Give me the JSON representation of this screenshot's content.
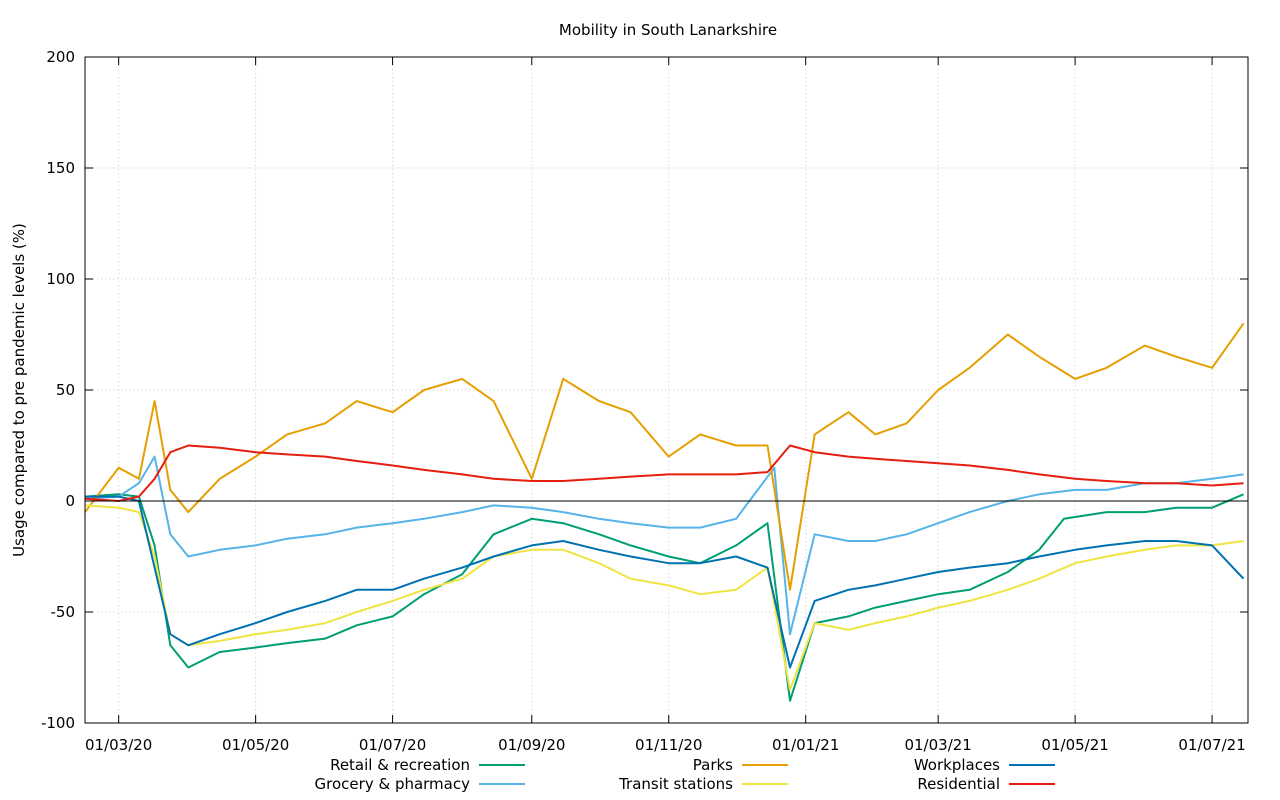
{
  "chart_data": {
    "type": "line",
    "title": "Mobility in South Lanarkshire",
    "xlabel": "",
    "ylabel": "Usage compared to pre pandemic levels (%)",
    "ylim": [
      -100,
      200
    ],
    "yticks": [
      -100,
      -50,
      0,
      50,
      100,
      150,
      200
    ],
    "x_start": "2020-02-15",
    "x_end": "2021-07-17",
    "xticks": [
      {
        "date": "2020-03-01",
        "label": "01/03/20"
      },
      {
        "date": "2020-05-01",
        "label": "01/05/20"
      },
      {
        "date": "2020-07-01",
        "label": "01/07/20"
      },
      {
        "date": "2020-09-01",
        "label": "01/09/20"
      },
      {
        "date": "2020-11-01",
        "label": "01/11/20"
      },
      {
        "date": "2021-01-01",
        "label": "01/01/21"
      },
      {
        "date": "2021-03-01",
        "label": "01/03/21"
      },
      {
        "date": "2021-05-01",
        "label": "01/05/21"
      },
      {
        "date": "2021-07-01",
        "label": "01/07/21"
      }
    ],
    "grid": true,
    "legend_position": "bottom",
    "series": [
      {
        "name": "Retail & recreation",
        "color": "#009e73",
        "points": [
          [
            "2020-02-15",
            2
          ],
          [
            "2020-03-01",
            3
          ],
          [
            "2020-03-10",
            2
          ],
          [
            "2020-03-17",
            -20
          ],
          [
            "2020-03-24",
            -65
          ],
          [
            "2020-04-01",
            -75
          ],
          [
            "2020-04-15",
            -68
          ],
          [
            "2020-05-01",
            -66
          ],
          [
            "2020-05-15",
            -64
          ],
          [
            "2020-06-01",
            -62
          ],
          [
            "2020-06-15",
            -56
          ],
          [
            "2020-07-01",
            -52
          ],
          [
            "2020-07-15",
            -42
          ],
          [
            "2020-08-01",
            -33
          ],
          [
            "2020-08-15",
            -15
          ],
          [
            "2020-09-01",
            -8
          ],
          [
            "2020-09-15",
            -10
          ],
          [
            "2020-10-01",
            -15
          ],
          [
            "2020-10-15",
            -20
          ],
          [
            "2020-11-01",
            -25
          ],
          [
            "2020-11-15",
            -28
          ],
          [
            "2020-12-01",
            -20
          ],
          [
            "2020-12-15",
            -10
          ],
          [
            "2020-12-25",
            -90
          ],
          [
            "2021-01-05",
            -55
          ],
          [
            "2021-01-20",
            -52
          ],
          [
            "2021-02-01",
            -48
          ],
          [
            "2021-02-15",
            -45
          ],
          [
            "2021-03-01",
            -42
          ],
          [
            "2021-03-15",
            -40
          ],
          [
            "2021-04-01",
            -32
          ],
          [
            "2021-04-15",
            -22
          ],
          [
            "2021-04-26",
            -8
          ],
          [
            "2021-05-15",
            -5
          ],
          [
            "2021-06-01",
            -5
          ],
          [
            "2021-06-15",
            -3
          ],
          [
            "2021-07-01",
            -3
          ],
          [
            "2021-07-15",
            3
          ]
        ]
      },
      {
        "name": "Grocery & pharmacy",
        "color": "#56b4e9",
        "points": [
          [
            "2020-02-15",
            1
          ],
          [
            "2020-03-01",
            2
          ],
          [
            "2020-03-10",
            8
          ],
          [
            "2020-03-17",
            20
          ],
          [
            "2020-03-24",
            -15
          ],
          [
            "2020-04-01",
            -25
          ],
          [
            "2020-04-15",
            -22
          ],
          [
            "2020-05-01",
            -20
          ],
          [
            "2020-05-15",
            -17
          ],
          [
            "2020-06-01",
            -15
          ],
          [
            "2020-06-15",
            -12
          ],
          [
            "2020-07-01",
            -10
          ],
          [
            "2020-07-15",
            -8
          ],
          [
            "2020-08-01",
            -5
          ],
          [
            "2020-08-15",
            -2
          ],
          [
            "2020-09-01",
            -3
          ],
          [
            "2020-09-15",
            -5
          ],
          [
            "2020-10-01",
            -8
          ],
          [
            "2020-10-15",
            -10
          ],
          [
            "2020-11-01",
            -12
          ],
          [
            "2020-11-15",
            -12
          ],
          [
            "2020-12-01",
            -8
          ],
          [
            "2020-12-18",
            15
          ],
          [
            "2020-12-25",
            -60
          ],
          [
            "2021-01-05",
            -15
          ],
          [
            "2021-01-20",
            -18
          ],
          [
            "2021-02-01",
            -18
          ],
          [
            "2021-02-15",
            -15
          ],
          [
            "2021-03-01",
            -10
          ],
          [
            "2021-03-15",
            -5
          ],
          [
            "2021-04-01",
            0
          ],
          [
            "2021-04-15",
            3
          ],
          [
            "2021-05-01",
            5
          ],
          [
            "2021-05-15",
            5
          ],
          [
            "2021-06-01",
            8
          ],
          [
            "2021-06-15",
            8
          ],
          [
            "2021-07-01",
            10
          ],
          [
            "2021-07-15",
            12
          ]
        ]
      },
      {
        "name": "Parks",
        "color": "#e69f00",
        "points": [
          [
            "2020-02-15",
            -5
          ],
          [
            "2020-03-01",
            15
          ],
          [
            "2020-03-10",
            10
          ],
          [
            "2020-03-17",
            45
          ],
          [
            "2020-03-24",
            5
          ],
          [
            "2020-04-01",
            -5
          ],
          [
            "2020-04-15",
            10
          ],
          [
            "2020-05-01",
            20
          ],
          [
            "2020-05-15",
            30
          ],
          [
            "2020-06-01",
            35
          ],
          [
            "2020-06-15",
            45
          ],
          [
            "2020-07-01",
            40
          ],
          [
            "2020-07-15",
            50
          ],
          [
            "2020-08-01",
            55
          ],
          [
            "2020-08-15",
            45
          ],
          [
            "2020-09-01",
            10
          ],
          [
            "2020-09-15",
            55
          ],
          [
            "2020-10-01",
            45
          ],
          [
            "2020-10-15",
            40
          ],
          [
            "2020-11-01",
            20
          ],
          [
            "2020-11-15",
            30
          ],
          [
            "2020-12-01",
            25
          ],
          [
            "2020-12-15",
            25
          ],
          [
            "2020-12-25",
            -40
          ],
          [
            "2021-01-05",
            30
          ],
          [
            "2021-01-20",
            40
          ],
          [
            "2021-02-01",
            30
          ],
          [
            "2021-02-15",
            35
          ],
          [
            "2021-03-01",
            50
          ],
          [
            "2021-03-15",
            60
          ],
          [
            "2021-04-01",
            75
          ],
          [
            "2021-04-15",
            65
          ],
          [
            "2021-05-01",
            55
          ],
          [
            "2021-05-15",
            60
          ],
          [
            "2021-06-01",
            70
          ],
          [
            "2021-06-15",
            65
          ],
          [
            "2021-07-01",
            60
          ],
          [
            "2021-07-15",
            80
          ]
        ]
      },
      {
        "name": "Transit stations",
        "color": "#f0e442",
        "points": [
          [
            "2020-02-15",
            -2
          ],
          [
            "2020-03-01",
            -3
          ],
          [
            "2020-03-10",
            -5
          ],
          [
            "2020-03-17",
            -25
          ],
          [
            "2020-03-24",
            -60
          ],
          [
            "2020-04-01",
            -65
          ],
          [
            "2020-04-15",
            -63
          ],
          [
            "2020-05-01",
            -60
          ],
          [
            "2020-05-15",
            -58
          ],
          [
            "2020-06-01",
            -55
          ],
          [
            "2020-06-15",
            -50
          ],
          [
            "2020-07-01",
            -45
          ],
          [
            "2020-07-15",
            -40
          ],
          [
            "2020-08-01",
            -35
          ],
          [
            "2020-08-15",
            -25
          ],
          [
            "2020-09-01",
            -22
          ],
          [
            "2020-09-15",
            -22
          ],
          [
            "2020-10-01",
            -28
          ],
          [
            "2020-10-15",
            -35
          ],
          [
            "2020-11-01",
            -38
          ],
          [
            "2020-11-15",
            -42
          ],
          [
            "2020-12-01",
            -40
          ],
          [
            "2020-12-15",
            -30
          ],
          [
            "2020-12-25",
            -85
          ],
          [
            "2021-01-05",
            -55
          ],
          [
            "2021-01-20",
            -58
          ],
          [
            "2021-02-01",
            -55
          ],
          [
            "2021-02-15",
            -52
          ],
          [
            "2021-03-01",
            -48
          ],
          [
            "2021-03-15",
            -45
          ],
          [
            "2021-04-01",
            -40
          ],
          [
            "2021-04-15",
            -35
          ],
          [
            "2021-05-01",
            -28
          ],
          [
            "2021-05-15",
            -25
          ],
          [
            "2021-06-01",
            -22
          ],
          [
            "2021-06-15",
            -20
          ],
          [
            "2021-07-01",
            -20
          ],
          [
            "2021-07-15",
            -18
          ]
        ]
      },
      {
        "name": "Workplaces",
        "color": "#0072b2",
        "points": [
          [
            "2020-02-15",
            2
          ],
          [
            "2020-03-01",
            2
          ],
          [
            "2020-03-10",
            0
          ],
          [
            "2020-03-17",
            -30
          ],
          [
            "2020-03-24",
            -60
          ],
          [
            "2020-04-01",
            -65
          ],
          [
            "2020-04-15",
            -60
          ],
          [
            "2020-05-01",
            -55
          ],
          [
            "2020-05-15",
            -50
          ],
          [
            "2020-06-01",
            -45
          ],
          [
            "2020-06-15",
            -40
          ],
          [
            "2020-07-01",
            -40
          ],
          [
            "2020-07-15",
            -35
          ],
          [
            "2020-08-01",
            -30
          ],
          [
            "2020-08-15",
            -25
          ],
          [
            "2020-09-01",
            -20
          ],
          [
            "2020-09-15",
            -18
          ],
          [
            "2020-10-01",
            -22
          ],
          [
            "2020-10-15",
            -25
          ],
          [
            "2020-11-01",
            -28
          ],
          [
            "2020-11-15",
            -28
          ],
          [
            "2020-12-01",
            -25
          ],
          [
            "2020-12-15",
            -30
          ],
          [
            "2020-12-25",
            -75
          ],
          [
            "2021-01-05",
            -45
          ],
          [
            "2021-01-20",
            -40
          ],
          [
            "2021-02-01",
            -38
          ],
          [
            "2021-02-15",
            -35
          ],
          [
            "2021-03-01",
            -32
          ],
          [
            "2021-03-15",
            -30
          ],
          [
            "2021-04-01",
            -28
          ],
          [
            "2021-04-15",
            -25
          ],
          [
            "2021-05-01",
            -22
          ],
          [
            "2021-05-15",
            -20
          ],
          [
            "2021-06-01",
            -18
          ],
          [
            "2021-06-15",
            -18
          ],
          [
            "2021-07-01",
            -20
          ],
          [
            "2021-07-15",
            -35
          ]
        ]
      },
      {
        "name": "Residential",
        "color": "#e51e10",
        "points": [
          [
            "2020-02-15",
            1
          ],
          [
            "2020-03-01",
            0
          ],
          [
            "2020-03-10",
            2
          ],
          [
            "2020-03-17",
            10
          ],
          [
            "2020-03-24",
            22
          ],
          [
            "2020-04-01",
            25
          ],
          [
            "2020-04-15",
            24
          ],
          [
            "2020-05-01",
            22
          ],
          [
            "2020-05-15",
            21
          ],
          [
            "2020-06-01",
            20
          ],
          [
            "2020-06-15",
            18
          ],
          [
            "2020-07-01",
            16
          ],
          [
            "2020-07-15",
            14
          ],
          [
            "2020-08-01",
            12
          ],
          [
            "2020-08-15",
            10
          ],
          [
            "2020-09-01",
            9
          ],
          [
            "2020-09-15",
            9
          ],
          [
            "2020-10-01",
            10
          ],
          [
            "2020-10-15",
            11
          ],
          [
            "2020-11-01",
            12
          ],
          [
            "2020-11-15",
            12
          ],
          [
            "2020-12-01",
            12
          ],
          [
            "2020-12-15",
            13
          ],
          [
            "2020-12-25",
            25
          ],
          [
            "2021-01-05",
            22
          ],
          [
            "2021-01-20",
            20
          ],
          [
            "2021-02-01",
            19
          ],
          [
            "2021-02-15",
            18
          ],
          [
            "2021-03-01",
            17
          ],
          [
            "2021-03-15",
            16
          ],
          [
            "2021-04-01",
            14
          ],
          [
            "2021-04-15",
            12
          ],
          [
            "2021-05-01",
            10
          ],
          [
            "2021-05-15",
            9
          ],
          [
            "2021-06-01",
            8
          ],
          [
            "2021-06-15",
            8
          ],
          [
            "2021-07-01",
            7
          ],
          [
            "2021-07-15",
            8
          ]
        ]
      }
    ]
  }
}
